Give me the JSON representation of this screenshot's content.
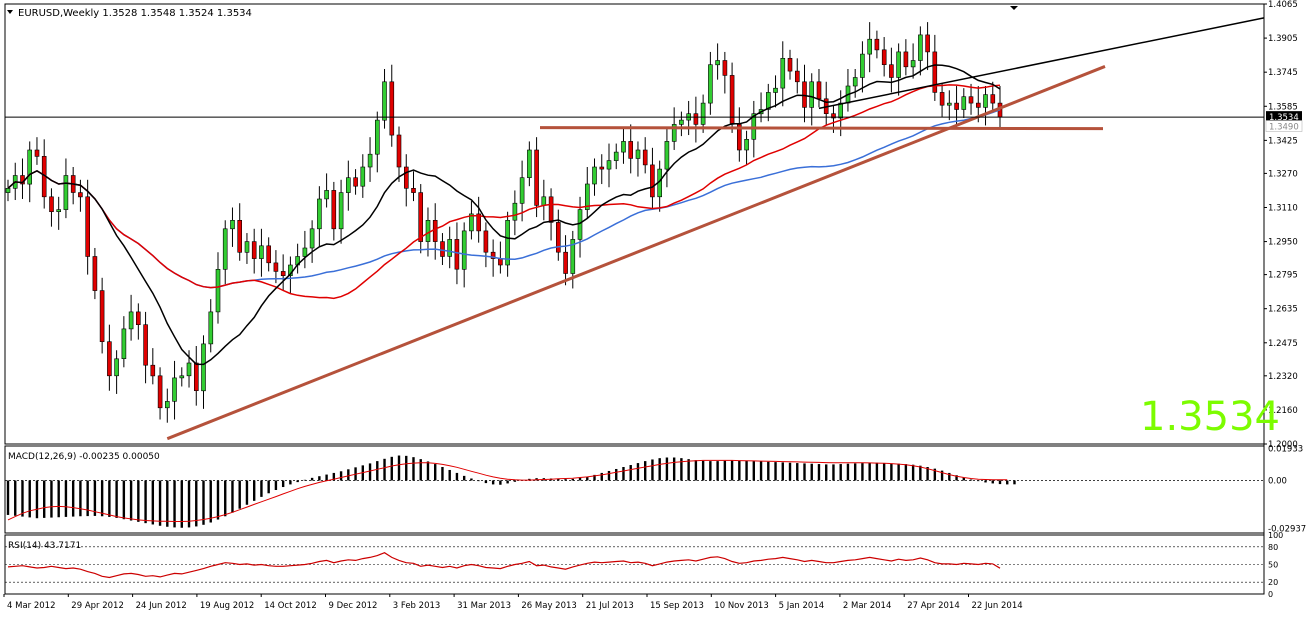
{
  "chart_data": {
    "type": "candlestick",
    "title": "EURUSD,Weekly  1.3528 1.3548 1.3524 1.3534",
    "symbol": "EURUSD",
    "timeframe": "Weekly",
    "ohlc_header": {
      "open": 1.3528,
      "high": 1.3548,
      "low": 1.3524,
      "close": 1.3534
    },
    "big_price_label": "1.3534",
    "current_price_tag": "1.3534",
    "secondary_price_tag": "1.3490",
    "price_axis_labels": [
      "1.4065",
      "1.3905",
      "1.3745",
      "1.3585",
      "1.3425",
      "1.3270",
      "1.3110",
      "1.2950",
      "1.2795",
      "1.2635",
      "1.2475",
      "1.2320",
      "1.2160",
      "1.2000"
    ],
    "price_range": [
      1.2,
      1.4065
    ],
    "date_labels": [
      "4 Mar 2012",
      "29 Apr 2012",
      "24 Jun 2012",
      "19 Aug 2012",
      "14 Oct 2012",
      "9 Dec 2012",
      "3 Feb 2013",
      "31 Mar 2013",
      "26 May 2013",
      "21 Jul 2013",
      "15 Sep 2013",
      "10 Nov 2013",
      "5 Jan 2014",
      "2 Mar 2014",
      "27 Apr 2014",
      "22 Jun 2014"
    ],
    "candles_close": [
      1.32,
      1.326,
      1.322,
      1.338,
      1.335,
      1.316,
      1.309,
      1.31,
      1.326,
      1.318,
      1.316,
      1.288,
      1.272,
      1.248,
      1.232,
      1.24,
      1.254,
      1.262,
      1.256,
      1.237,
      1.232,
      1.217,
      1.22,
      1.231,
      1.232,
      1.238,
      1.225,
      1.247,
      1.262,
      1.282,
      1.301,
      1.305,
      1.29,
      1.295,
      1.287,
      1.293,
      1.285,
      1.281,
      1.279,
      1.284,
      1.288,
      1.292,
      1.301,
      1.315,
      1.319,
      1.301,
      1.318,
      1.325,
      1.321,
      1.33,
      1.336,
      1.352,
      1.37,
      1.345,
      1.33,
      1.32,
      1.318,
      1.295,
      1.305,
      1.295,
      1.288,
      1.296,
      1.282,
      1.3,
      1.308,
      1.3,
      1.29,
      1.287,
      1.284,
      1.305,
      1.313,
      1.325,
      1.338,
      1.312,
      1.316,
      1.304,
      1.29,
      1.28,
      1.296,
      1.31,
      1.322,
      1.33,
      1.329,
      1.333,
      1.337,
      1.342,
      1.334,
      1.338,
      1.331,
      1.316,
      1.329,
      1.342,
      1.35,
      1.352,
      1.355,
      1.35,
      1.36,
      1.378,
      1.38,
      1.373,
      1.35,
      1.338,
      1.343,
      1.355,
      1.357,
      1.365,
      1.367,
      1.381,
      1.375,
      1.37,
      1.358,
      1.37,
      1.362,
      1.355,
      1.353,
      1.36,
      1.368,
      1.372,
      1.383,
      1.39,
      1.385,
      1.378,
      1.372,
      1.384,
      1.377,
      1.38,
      1.392,
      1.384,
      1.365,
      1.359,
      1.36,
      1.357,
      1.363,
      1.36,
      1.358,
      1.364,
      1.36,
      1.3534
    ],
    "indicators": {
      "macd": {
        "label": "MACD(12,26,9) -0.00235 0.00050",
        "axis_labels": [
          "0.01933",
          "0.00",
          "-0.02937"
        ],
        "range": [
          -0.032,
          0.021
        ],
        "histogram": [
          -0.021,
          -0.0215,
          -0.022,
          -0.0225,
          -0.023,
          -0.0228,
          -0.0226,
          -0.0224,
          -0.0222,
          -0.022,
          -0.0218,
          -0.0217,
          -0.0216,
          -0.0218,
          -0.0222,
          -0.0228,
          -0.0236,
          -0.0244,
          -0.0252,
          -0.026,
          -0.0268,
          -0.0276,
          -0.0282,
          -0.0286,
          -0.0288,
          -0.0286,
          -0.028,
          -0.027,
          -0.0256,
          -0.0238,
          -0.0218,
          -0.0196,
          -0.0172,
          -0.0148,
          -0.0124,
          -0.01,
          -0.0078,
          -0.0058,
          -0.004,
          -0.0024,
          -0.001,
          0.0004,
          0.0016,
          0.0026,
          0.0036,
          0.0046,
          0.0056,
          0.0068,
          0.008,
          0.0092,
          0.0104,
          0.0118,
          0.0132,
          0.0144,
          0.0152,
          0.015,
          0.0142,
          0.013,
          0.0116,
          0.01,
          0.0082,
          0.0064,
          0.0046,
          0.0028,
          0.0012,
          -0.0004,
          -0.0016,
          -0.0024,
          -0.0026,
          -0.0018,
          -0.0008,
          0.0002,
          0.001,
          0.0014,
          0.0014,
          0.0012,
          0.001,
          0.0008,
          0.001,
          0.0016,
          0.0024,
          0.0034,
          0.0046,
          0.0058,
          0.007,
          0.0082,
          0.0094,
          0.0106,
          0.0118,
          0.0128,
          0.0136,
          0.014,
          0.014,
          0.0136,
          0.013,
          0.0124,
          0.012,
          0.0118,
          0.0118,
          0.012,
          0.0122,
          0.0122,
          0.012,
          0.0118,
          0.0116,
          0.0114,
          0.0112,
          0.011,
          0.0108,
          0.0106,
          0.0104,
          0.0102,
          0.01,
          0.0098,
          0.0098,
          0.01,
          0.0102,
          0.0104,
          0.0106,
          0.0108,
          0.0108,
          0.0106,
          0.0104,
          0.0102,
          0.01,
          0.0096,
          0.009,
          0.0082,
          0.0072,
          0.006,
          0.0046,
          0.0032,
          0.0018,
          0.0006,
          -0.0004,
          -0.0012,
          -0.0018,
          -0.0022,
          -0.0024,
          -0.00235
        ],
        "signal_line": [
          -0.024,
          -0.022,
          -0.02,
          -0.0185,
          -0.0175,
          -0.0165,
          -0.016,
          -0.0158,
          -0.016,
          -0.0165,
          -0.0172,
          -0.018,
          -0.019,
          -0.02,
          -0.021,
          -0.022,
          -0.0228,
          -0.0234,
          -0.024,
          -0.0244,
          -0.0246,
          -0.0248,
          -0.0249,
          -0.025,
          -0.025,
          -0.0248,
          -0.0244,
          -0.0238,
          -0.023,
          -0.022,
          -0.0208,
          -0.0194,
          -0.0178,
          -0.0162,
          -0.0146,
          -0.013,
          -0.0114,
          -0.0098,
          -0.0082,
          -0.0066,
          -0.005,
          -0.0036,
          -0.0024,
          -0.0012,
          -0.0002,
          0.0008,
          0.0018,
          0.0028,
          0.0038,
          0.0048,
          0.0058,
          0.0068,
          0.0078,
          0.0088,
          0.0096,
          0.0102,
          0.0106,
          0.0108,
          0.0108,
          0.0104,
          0.0098,
          0.009,
          0.008,
          0.0068,
          0.0056,
          0.0044,
          0.0032,
          0.0022,
          0.0014,
          0.0008,
          0.0004,
          0.0002,
          0.0002,
          0.0004,
          0.0006,
          0.0008,
          0.001,
          0.0012,
          0.0014,
          0.0018,
          0.0022,
          0.0028,
          0.0034,
          0.0042,
          0.005,
          0.0058,
          0.0066,
          0.0074,
          0.0082,
          0.009,
          0.0098,
          0.0104,
          0.011,
          0.0114,
          0.0118,
          0.012,
          0.0122,
          0.0122,
          0.0122,
          0.0122,
          0.0122,
          0.0121,
          0.012,
          0.0119,
          0.0118,
          0.0117,
          0.0116,
          0.0115,
          0.0114,
          0.0113,
          0.0112,
          0.0111,
          0.011,
          0.0109,
          0.0108,
          0.0108,
          0.0108,
          0.0108,
          0.0108,
          0.0107,
          0.0106,
          0.0105,
          0.0103,
          0.01,
          0.0096,
          0.009,
          0.0082,
          0.0072,
          0.006,
          0.0048,
          0.0036,
          0.0026,
          0.0018,
          0.0012,
          0.0008,
          0.0006,
          0.0005,
          0.0005,
          0.0005
        ]
      },
      "rsi": {
        "label": "RSI(14) 43.7171",
        "axis_labels": [
          "100",
          "80",
          "50",
          "20",
          "0"
        ],
        "levels": [
          100,
          80,
          50,
          20,
          0
        ],
        "value": 43.7171,
        "values": [
          46,
          47,
          48,
          46,
          44,
          45,
          47,
          45,
          43,
          44,
          42,
          38,
          35,
          30,
          28,
          31,
          34,
          35,
          33,
          30,
          31,
          29,
          32,
          35,
          34,
          37,
          40,
          43,
          47,
          50,
          53,
          52,
          50,
          51,
          49,
          50,
          48,
          47,
          47,
          48,
          49,
          50,
          52,
          55,
          57,
          53,
          56,
          58,
          57,
          60,
          62,
          65,
          70,
          62,
          57,
          53,
          52,
          47,
          49,
          47,
          45,
          47,
          44,
          48,
          50,
          48,
          45,
          44,
          43,
          47,
          50,
          52,
          55,
          48,
          49,
          46,
          44,
          42,
          46,
          49,
          52,
          54,
          53,
          54,
          55,
          56,
          53,
          54,
          52,
          48,
          51,
          54,
          56,
          57,
          58,
          56,
          59,
          62,
          63,
          60,
          55,
          52,
          53,
          56,
          57,
          59,
          60,
          62,
          60,
          58,
          55,
          57,
          55,
          53,
          53,
          55,
          57,
          58,
          60,
          62,
          60,
          58,
          56,
          59,
          57,
          58,
          61,
          58,
          53,
          51,
          51,
          50,
          52,
          51,
          50,
          52,
          51,
          43.7171
        ]
      }
    },
    "price_overlays": [
      "black moving average",
      "red moving average",
      "blue moving average",
      "brown rising trendline",
      "brown horizontal support line",
      "black extended trendline",
      "horizontal price line at 1.3534"
    ]
  }
}
